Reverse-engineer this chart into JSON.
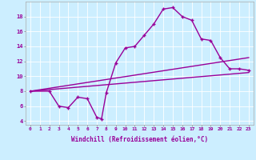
{
  "background_color": "#cceeff",
  "line_color": "#990099",
  "marker": "+",
  "xlabel": "Windchill (Refroidissement éolien,°C)",
  "xlim": [
    -0.5,
    23.5
  ],
  "ylim": [
    3.5,
    20
  ],
  "yticks": [
    4,
    6,
    8,
    10,
    12,
    14,
    16,
    18
  ],
  "xticks": [
    0,
    1,
    2,
    3,
    4,
    5,
    6,
    7,
    8,
    9,
    10,
    11,
    12,
    13,
    14,
    15,
    16,
    17,
    18,
    19,
    20,
    21,
    22,
    23
  ],
  "line1_x": [
    0,
    2,
    3,
    4,
    5,
    6,
    7,
    7.5,
    8,
    9,
    10,
    11,
    12,
    13,
    14,
    15,
    16,
    17,
    18,
    19,
    20,
    21,
    22,
    23
  ],
  "line1_y": [
    8,
    8,
    6,
    5.8,
    7.2,
    7.0,
    4.5,
    4.3,
    7.8,
    11.8,
    13.8,
    14.0,
    15.5,
    17.0,
    19.0,
    19.2,
    18.0,
    17.5,
    15.0,
    14.8,
    12.5,
    11.0,
    11.0,
    10.8
  ],
  "line2_x": [
    0,
    23
  ],
  "line2_y": [
    8.0,
    10.5
  ],
  "line3_x": [
    0,
    23
  ],
  "line3_y": [
    8.0,
    12.5
  ]
}
